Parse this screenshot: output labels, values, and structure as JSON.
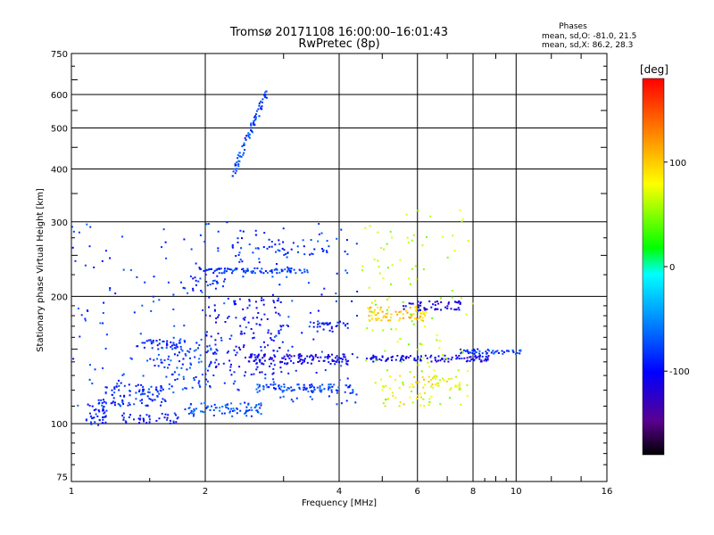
{
  "chart_data": {
    "type": "scatter",
    "title": "Tromsø 20171108 16:00:00–16:01:43",
    "subtitle": "RwPretec (8p)",
    "xlabel": "Frequency [MHz]",
    "ylabel": "Stationary phase Virtual Height [km]",
    "x_scale": "log",
    "y_scale": "log",
    "xlim": [
      1,
      16
    ],
    "ylim": [
      73,
      750
    ],
    "grid": true,
    "x_ticks": [
      "1",
      "2",
      "4",
      "6",
      "8",
      "10",
      "16"
    ],
    "y_ticks": [
      "75",
      "100",
      "200",
      "300",
      "400",
      "500",
      "600",
      "750"
    ],
    "stats": {
      "heading": "Phases",
      "line1": "mean, sd,O: -81.0, 21.5",
      "line2": "mean, sd,X: 86.2, 28.3"
    },
    "colorbar": {
      "label": "[deg]",
      "range": [
        -180,
        180
      ],
      "ticks": [
        "100",
        "0",
        "-100"
      ],
      "colors": [
        "#000000",
        "#6000a0",
        "#0000ff",
        "#0080ff",
        "#00ffff",
        "#00ff00",
        "#ffff00",
        "#ff8000",
        "#ff0000"
      ]
    },
    "clusters": [
      {
        "x": [
          1.08,
          1.2
        ],
        "y": [
          98,
          112
        ],
        "phase": -90,
        "n": 40
      },
      {
        "x": [
          1.15,
          1.6
        ],
        "y": [
          110,
          125
        ],
        "phase": -85,
        "n": 90
      },
      {
        "x": [
          1.3,
          1.75
        ],
        "y": [
          100,
          106
        ],
        "phase": -95,
        "n": 40
      },
      {
        "x": [
          1.4,
          1.8
        ],
        "y": [
          150,
          158
        ],
        "phase": -90,
        "n": 40
      },
      {
        "x": [
          1.55,
          2.1
        ],
        "y": [
          120,
          160
        ],
        "phase": -80,
        "n": 80
      },
      {
        "x": [
          1.8,
          2.7
        ],
        "y": [
          104,
          112
        ],
        "phase": -70,
        "n": 80
      },
      {
        "x": [
          1.85,
          2.2
        ],
        "y": [
          205,
          235
        ],
        "phase": -95,
        "n": 25
      },
      {
        "x": [
          2.0,
          3.4
        ],
        "y": [
          227,
          233
        ],
        "phase": -80,
        "n": 90
      },
      {
        "x": [
          2.0,
          3.0
        ],
        "y": [
          130,
          200
        ],
        "phase": -100,
        "n": 140
      },
      {
        "x": [
          2.3,
          2.75
        ],
        "y": [
          385,
          610
        ],
        "phase": -75,
        "n": 80
      },
      {
        "x": [
          2.5,
          4.2
        ],
        "y": [
          138,
          146
        ],
        "phase": -110,
        "n": 120
      },
      {
        "x": [
          2.6,
          4.3
        ],
        "y": [
          118,
          124
        ],
        "phase": -80,
        "n": 90
      },
      {
        "x": [
          2.3,
          3.8
        ],
        "y": [
          250,
          275
        ],
        "phase": -85,
        "n": 40
      },
      {
        "x": [
          3.5,
          4.2
        ],
        "y": [
          165,
          175
        ],
        "phase": -95,
        "n": 30
      },
      {
        "x": [
          4.6,
          6.3
        ],
        "y": [
          175,
          190
        ],
        "phase": 100,
        "n": 80
      },
      {
        "x": [
          5.5,
          7.5
        ],
        "y": [
          185,
          195
        ],
        "phase": -110,
        "n": 50
      },
      {
        "x": [
          4.6,
          8.8
        ],
        "y": [
          140,
          145
        ],
        "phase": -105,
        "n": 110
      },
      {
        "x": [
          7.5,
          10.5
        ],
        "y": [
          146,
          150
        ],
        "phase": -80,
        "n": 50
      },
      {
        "x": [
          5.0,
          6.5
        ],
        "y": [
          110,
          130
        ],
        "phase": 90,
        "n": 40
      },
      {
        "x": [
          6.4,
          7.5
        ],
        "y": [
          120,
          130
        ],
        "phase": 80,
        "n": 30
      },
      {
        "x": [
          4.5,
          8.0
        ],
        "y": [
          110,
          320
        ],
        "phase": 60,
        "n": 120
      },
      {
        "x": [
          1.0,
          4.4
        ],
        "y": [
          110,
          300
        ],
        "phase": -80,
        "n": 250
      }
    ]
  }
}
